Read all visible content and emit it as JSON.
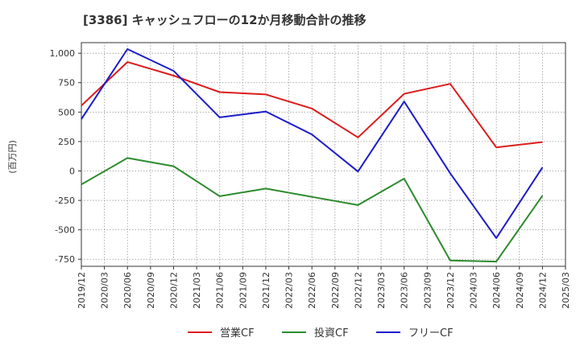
{
  "chart_data": {
    "type": "line",
    "title": "[3386]  キャッシュフローの12か月移動合計の推移",
    "ylabel": "(百万円)",
    "xlabel": "",
    "ylim": [
      -810,
      1090
    ],
    "yticks": [
      1000,
      750,
      500,
      250,
      0,
      -250,
      -500,
      -750
    ],
    "ytick_labels": [
      "1,000",
      "750",
      "500",
      "250",
      "0",
      "-250",
      "-500",
      "-750"
    ],
    "xticks": [
      "2019/12",
      "2020/03",
      "2020/06",
      "2020/09",
      "2020/12",
      "2021/03",
      "2021/06",
      "2021/09",
      "2021/12",
      "2022/03",
      "2022/06",
      "2022/09",
      "2022/12",
      "2023/03",
      "2023/06",
      "2023/09",
      "2023/12",
      "2024/03",
      "2024/06",
      "2024/09",
      "2024/12",
      "2025/03"
    ],
    "grid": true,
    "legend_position": "bottom",
    "series": [
      {
        "name": "営業CF",
        "color": "#dd1c1c",
        "x": [
          "2019/12",
          "2020/06",
          "2020/12",
          "2021/06",
          "2021/12",
          "2022/06",
          "2022/12",
          "2023/06",
          "2023/12",
          "2024/06",
          "2024/12"
        ],
        "values": [
          555,
          925,
          810,
          670,
          650,
          530,
          285,
          655,
          740,
          200,
          245
        ]
      },
      {
        "name": "投資CF",
        "color": "#2e8b2e",
        "x": [
          "2019/12",
          "2020/06",
          "2020/12",
          "2021/06",
          "2021/12",
          "2022/06",
          "2022/12",
          "2023/06",
          "2023/12",
          "2024/06",
          "2024/12"
        ],
        "values": [
          -115,
          110,
          40,
          -215,
          -150,
          -220,
          -290,
          -65,
          -760,
          -770,
          -210
        ]
      },
      {
        "name": "フリーCF",
        "color": "#1c1cc8",
        "x": [
          "2019/12",
          "2020/06",
          "2020/12",
          "2021/06",
          "2021/12",
          "2022/06",
          "2022/12",
          "2023/06",
          "2023/12",
          "2024/06",
          "2024/12"
        ],
        "values": [
          440,
          1035,
          850,
          455,
          505,
          310,
          -5,
          590,
          -20,
          -570,
          30
        ]
      }
    ]
  }
}
